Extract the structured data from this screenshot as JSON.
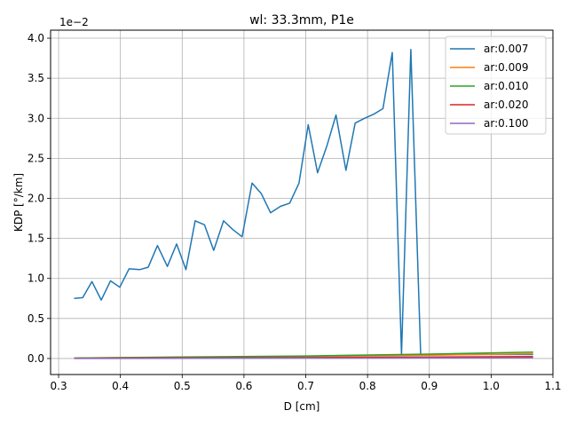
{
  "chart_data": {
    "type": "line",
    "title": "wl: 33.3mm, P1e",
    "xlabel": "D [cm]",
    "ylabel": "KDP [°/km]",
    "y_scale_label": "1e−2",
    "xlim": [
      0.287,
      1.1
    ],
    "ylim": [
      -0.2,
      4.1
    ],
    "x_ticks": [
      0.3,
      0.4,
      0.5,
      0.6,
      0.7,
      0.8,
      0.9,
      1.0,
      1.1
    ],
    "x_tick_labels": [
      "0.3",
      "0.4",
      "0.5",
      "0.6",
      "0.7",
      "0.8",
      "0.9",
      "1.0",
      "1.1"
    ],
    "y_ticks": [
      0.0,
      0.5,
      1.0,
      1.5,
      2.0,
      2.5,
      3.0,
      3.5,
      4.0
    ],
    "y_tick_labels": [
      "0.0",
      "0.5",
      "1.0",
      "1.5",
      "2.0",
      "2.5",
      "3.0",
      "3.5",
      "4.0"
    ],
    "grid": true,
    "legend_position": "top-right",
    "series": [
      {
        "name": "ar:0.007",
        "color": "#1f77b4",
        "points": [
          [
            0.325,
            0.75
          ],
          [
            0.339,
            0.76
          ],
          [
            0.354,
            0.96
          ],
          [
            0.369,
            0.73
          ],
          [
            0.384,
            0.97
          ],
          [
            0.399,
            0.89
          ],
          [
            0.414,
            1.12
          ],
          [
            0.431,
            1.11
          ],
          [
            0.445,
            1.14
          ],
          [
            0.46,
            1.41
          ],
          [
            0.476,
            1.15
          ],
          [
            0.491,
            1.43
          ],
          [
            0.506,
            1.11
          ],
          [
            0.521,
            1.72
          ],
          [
            0.536,
            1.67
          ],
          [
            0.551,
            1.35
          ],
          [
            0.567,
            1.72
          ],
          [
            0.582,
            1.61
          ],
          [
            0.597,
            1.52
          ],
          [
            0.613,
            2.19
          ],
          [
            0.628,
            2.06
          ],
          [
            0.643,
            1.82
          ],
          [
            0.659,
            1.9
          ],
          [
            0.674,
            1.94
          ],
          [
            0.689,
            2.19
          ],
          [
            0.704,
            2.92
          ],
          [
            0.719,
            2.32
          ],
          [
            0.734,
            2.65
          ],
          [
            0.749,
            3.04
          ],
          [
            0.765,
            2.35
          ],
          [
            0.78,
            2.94
          ],
          [
            0.795,
            3.0
          ],
          [
            0.81,
            3.05
          ],
          [
            0.825,
            3.12
          ],
          [
            0.84,
            3.82
          ],
          [
            0.855,
            0.05
          ],
          [
            0.87,
            3.86
          ],
          [
            0.886,
            0.05
          ],
          [
            0.901,
            0.05
          ],
          [
            0.916,
            0.05
          ],
          [
            0.931,
            0.05
          ],
          [
            0.946,
            0.05
          ],
          [
            0.961,
            0.05
          ],
          [
            0.977,
            0.05
          ],
          [
            0.992,
            0.05
          ],
          [
            1.007,
            0.05
          ],
          [
            1.022,
            0.05
          ],
          [
            1.037,
            0.05
          ],
          [
            1.052,
            0.05
          ],
          [
            1.068,
            0.05
          ]
        ]
      },
      {
        "name": "ar:0.009",
        "color": "#ff7f0e",
        "points": [
          [
            0.325,
            0.005
          ],
          [
            0.5,
            0.015
          ],
          [
            0.7,
            0.025
          ],
          [
            0.9,
            0.04
          ],
          [
            1.068,
            0.06
          ]
        ]
      },
      {
        "name": "ar:0.010",
        "color": "#2ca02c",
        "points": [
          [
            0.325,
            0.006
          ],
          [
            0.5,
            0.018
          ],
          [
            0.7,
            0.032
          ],
          [
            0.9,
            0.055
          ],
          [
            1.068,
            0.08
          ]
        ]
      },
      {
        "name": "ar:0.020",
        "color": "#d62728",
        "points": [
          [
            0.325,
            0.003
          ],
          [
            0.5,
            0.008
          ],
          [
            0.7,
            0.012
          ],
          [
            0.9,
            0.018
          ],
          [
            1.068,
            0.025
          ]
        ]
      },
      {
        "name": "ar:0.100",
        "color": "#9467bd",
        "points": [
          [
            0.325,
            0.001
          ],
          [
            0.5,
            0.003
          ],
          [
            0.7,
            0.005
          ],
          [
            0.9,
            0.007
          ],
          [
            1.068,
            0.01
          ]
        ]
      }
    ]
  }
}
